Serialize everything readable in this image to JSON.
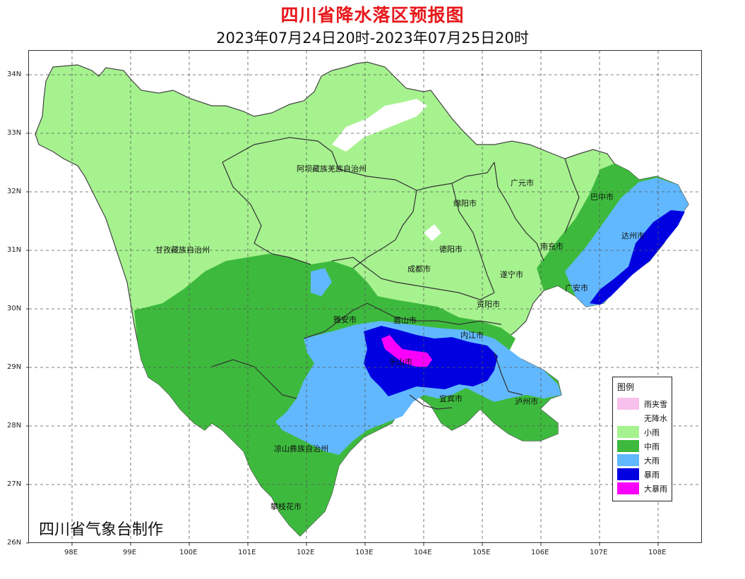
{
  "title": "四川省降水落区预报图",
  "subtitle": "2023年07月24日20时-2023年07月25日20时",
  "credit": "四川省气象台制作",
  "axes": {
    "x_ticks": [
      "98E",
      "99E",
      "100E",
      "101E",
      "102E",
      "103E",
      "104E",
      "105E",
      "106E",
      "107E",
      "108E"
    ],
    "y_ticks": [
      "34N",
      "33N",
      "32N",
      "31N",
      "30N",
      "29N",
      "28N",
      "27N",
      "26N"
    ]
  },
  "cities": [
    {
      "name": "阿坝藏族羌族自治州"
    },
    {
      "name": "甘孜藏族自治州"
    },
    {
      "name": "广元市"
    },
    {
      "name": "巴中市"
    },
    {
      "name": "绵阳市"
    },
    {
      "name": "达州市"
    },
    {
      "name": "德阳市"
    },
    {
      "name": "南充市"
    },
    {
      "name": "成都市"
    },
    {
      "name": "遂宁市"
    },
    {
      "name": "广安市"
    },
    {
      "name": "资阳市"
    },
    {
      "name": "雅安市"
    },
    {
      "name": "眉山市"
    },
    {
      "name": "内江市"
    },
    {
      "name": "乐山市"
    },
    {
      "name": "宜宾市"
    },
    {
      "name": "泸州市"
    },
    {
      "name": "凉山彝族自治州"
    },
    {
      "name": "攀枝花市"
    }
  ],
  "legend": {
    "title": "图例",
    "items": [
      {
        "label": "雨夹雪",
        "color": "#f8c0ec"
      },
      {
        "label": "无降水",
        "color": "#ffffff"
      },
      {
        "label": "小雨",
        "color": "#a6f28f"
      },
      {
        "label": "中雨",
        "color": "#3dba3d"
      },
      {
        "label": "大雨",
        "color": "#61b8ff"
      },
      {
        "label": "暴雨",
        "color": "#0000e1"
      },
      {
        "label": "大暴雨",
        "color": "#fa00fa"
      }
    ]
  }
}
